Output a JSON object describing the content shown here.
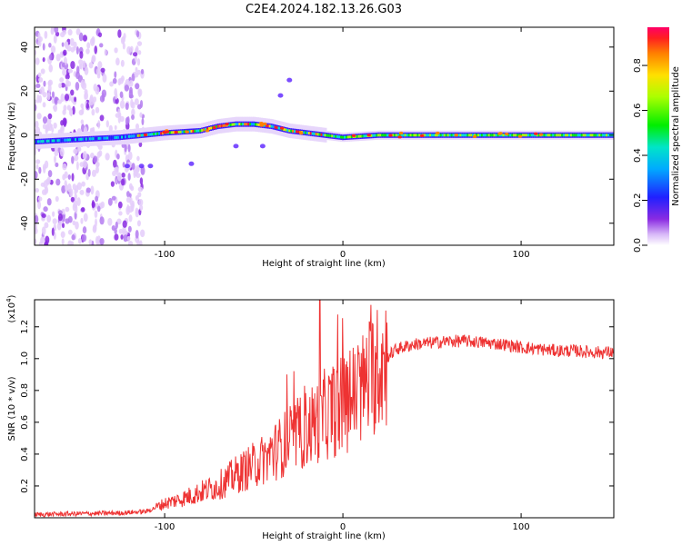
{
  "title": "C2E4.2024.182.13.26.G03",
  "colors": {
    "snr_line": "#ee3333",
    "axis": "#000000"
  },
  "chart_data": [
    {
      "type": "heatmap",
      "xlabel": "Height of straight line (km)",
      "ylabel": "Frequency (Hz)",
      "xlim": [
        -173,
        152
      ],
      "ylim": [
        -50,
        49
      ],
      "xticks": [
        -100,
        0,
        100
      ],
      "yticks": [
        -40,
        -20,
        0,
        20,
        40
      ],
      "colorbar": {
        "label": "Normalized spectral amplitude",
        "range": [
          0,
          0.97
        ],
        "ticks": [
          "0.0",
          "0.2",
          "0.4",
          "0.6",
          "0.8"
        ]
      },
      "description_series": [
        {
          "name": "noise_region_x",
          "values": [
            -173,
            -112
          ]
        },
        {
          "name": "main_trace_center_hz",
          "x": [
            -173,
            -150,
            -125,
            -112,
            -100,
            -80,
            -70,
            -60,
            -50,
            -40,
            -30,
            -20,
            -10,
            0,
            20,
            60,
            100,
            152
          ],
          "values": [
            -3,
            -2,
            -1,
            0,
            1,
            2,
            4,
            5,
            5,
            4,
            2,
            1,
            0,
            -1,
            0,
            0,
            0,
            0
          ]
        }
      ]
    },
    {
      "type": "line",
      "xlabel": "Height of straight line (km)",
      "ylabel": "SNR (10 * v/v)",
      "yscale_label": "(x10",
      "yscale_exp": "4",
      "xlim": [
        -173,
        152
      ],
      "ylim": [
        0,
        13700
      ],
      "xticks": [
        -100,
        0,
        100
      ],
      "yticks": [
        {
          "v": 2000,
          "t": "0.2"
        },
        {
          "v": 4000,
          "t": "0.4"
        },
        {
          "v": 6000,
          "t": "0.6"
        },
        {
          "v": 8000,
          "t": "0.8"
        },
        {
          "v": 10000,
          "t": "1.0"
        },
        {
          "v": 12000,
          "t": "1.2"
        }
      ],
      "series": [
        {
          "x": [
            -173,
            -150,
            -125,
            -110,
            -100,
            -90,
            -80,
            -70,
            -60,
            -50,
            -40,
            -30,
            -20,
            -10,
            0,
            10,
            20,
            30,
            40,
            50,
            60,
            70,
            80,
            90,
            100,
            110,
            120,
            130,
            140,
            152
          ],
          "values": [
            200,
            250,
            300,
            400,
            900,
            1200,
            1600,
            2000,
            2700,
            3300,
            4000,
            4900,
            5600,
            6500,
            7100,
            8000,
            9600,
            10600,
            10900,
            11000,
            11100,
            11100,
            11000,
            10900,
            10700,
            10600,
            10500,
            10500,
            10400,
            10400
          ]
        }
      ]
    }
  ]
}
